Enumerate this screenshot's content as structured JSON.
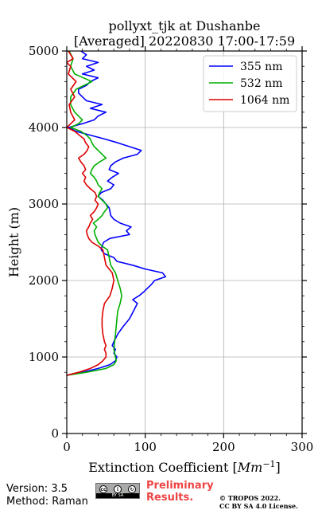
{
  "chart_data": {
    "type": "line",
    "title_line1": "pollyxt_tjk at Dushanbe",
    "title_line2": "[Averaged] 20220830 17:00-17:59",
    "xlabel": "Extinction Coefficient [",
    "xlabel_unit": "Mm",
    "xlabel_exp": "−1",
    "xlabel_end": "]",
    "ylabel": "Height (m)",
    "xlim": [
      0,
      300
    ],
    "ylim": [
      0,
      5000
    ],
    "xticks": [
      0,
      100,
      200,
      300
    ],
    "yticks": [
      0,
      1000,
      2000,
      3000,
      4000,
      5000
    ],
    "grid": true,
    "legend_position": "top-right",
    "series": [
      {
        "name": "355 nm",
        "color": "#0000ff",
        "y": [
          760,
          800,
          850,
          900,
          950,
          1000,
          1050,
          1100,
          1150,
          1200,
          1300,
          1400,
          1500,
          1600,
          1700,
          1750,
          1800,
          1850,
          1900,
          1950,
          2000,
          2050,
          2100,
          2150,
          2200,
          2250,
          2300,
          2350,
          2400,
          2450,
          2500,
          2550,
          2600,
          2650,
          2700,
          2750,
          2800,
          2850,
          2900,
          2950,
          3000,
          3050,
          3100,
          3150,
          3200,
          3250,
          3300,
          3350,
          3400,
          3450,
          3500,
          3550,
          3600,
          3650,
          3700,
          3750,
          3800,
          3850,
          3900,
          3950,
          4000,
          4050,
          4100,
          4150,
          4200,
          4250,
          4300,
          4350,
          4400,
          4450,
          4500,
          4550,
          4600,
          4650,
          4700,
          4750,
          4800,
          4850,
          4900,
          4950,
          5000
        ],
        "x": [
          0,
          20,
          40,
          55,
          62,
          64,
          60,
          62,
          58,
          60,
          65,
          72,
          80,
          85,
          90,
          84,
          92,
          98,
          103,
          108,
          112,
          126,
          122,
          100,
          84,
          64,
          60,
          48,
          44,
          45,
          47,
          55,
          80,
          76,
          82,
          68,
          60,
          56,
          55,
          54,
          50,
          46,
          40,
          44,
          56,
          60,
          52,
          58,
          66,
          54,
          56,
          62,
          72,
          90,
          95,
          80,
          65,
          48,
          30,
          12,
          2,
          20,
          35,
          40,
          50,
          30,
          45,
          25,
          20,
          15,
          15,
          25,
          30,
          40,
          20,
          35,
          25,
          40,
          20,
          25,
          18
        ]
      },
      {
        "name": "532 nm",
        "color": "#00b000",
        "y": [
          760,
          800,
          850,
          900,
          950,
          1000,
          1100,
          1200,
          1300,
          1400,
          1500,
          1600,
          1700,
          1800,
          1900,
          2000,
          2100,
          2200,
          2300,
          2400,
          2450,
          2500,
          2550,
          2600,
          2650,
          2700,
          2750,
          2800,
          2850,
          2900,
          2950,
          3000,
          3050,
          3100,
          3150,
          3200,
          3250,
          3300,
          3350,
          3400,
          3450,
          3500,
          3550,
          3600,
          3650,
          3700,
          3750,
          3800,
          3850,
          3900,
          3950,
          4000,
          4050,
          4100,
          4200,
          4300,
          4400,
          4500,
          4600,
          4700,
          4800,
          4900,
          5000
        ],
        "x": [
          0,
          25,
          50,
          60,
          63,
          62,
          60,
          61,
          62,
          63,
          64,
          65,
          68,
          70,
          68,
          65,
          62,
          56,
          54,
          52,
          45,
          40,
          38,
          36,
          35,
          38,
          34,
          40,
          45,
          48,
          52,
          50,
          45,
          40,
          42,
          45,
          40,
          38,
          35,
          30,
          32,
          35,
          42,
          50,
          45,
          40,
          35,
          32,
          30,
          25,
          18,
          5,
          15,
          20,
          10,
          5,
          5,
          12,
          32,
          10,
          5,
          8,
          3
        ]
      },
      {
        "name": "1064 nm",
        "color": "#dd0000",
        "y": [
          760,
          800,
          850,
          900,
          950,
          1000,
          1050,
          1100,
          1150,
          1200,
          1300,
          1400,
          1500,
          1600,
          1700,
          1800,
          1900,
          2000,
          2100,
          2200,
          2300,
          2400,
          2450,
          2500,
          2550,
          2600,
          2650,
          2700,
          2750,
          2800,
          2850,
          2900,
          2950,
          3000,
          3050,
          3100,
          3150,
          3200,
          3250,
          3300,
          3350,
          3400,
          3450,
          3500,
          3550,
          3600,
          3650,
          3700,
          3750,
          3800,
          3850,
          3900,
          3950,
          4000,
          4100,
          4200,
          4300,
          4400,
          4500,
          4600,
          4700,
          4800,
          4850,
          4900,
          5000
        ],
        "x": [
          0,
          15,
          30,
          40,
          46,
          50,
          50,
          48,
          50,
          48,
          46,
          45,
          45,
          46,
          48,
          55,
          58,
          60,
          58,
          50,
          48,
          46,
          40,
          32,
          28,
          26,
          25,
          28,
          30,
          33,
          30,
          35,
          38,
          40,
          36,
          38,
          36,
          30,
          25,
          22,
          24,
          20,
          24,
          22,
          18,
          15,
          22,
          26,
          28,
          24,
          22,
          16,
          10,
          0,
          10,
          5,
          3,
          10,
          5,
          12,
          2,
          5,
          0,
          8,
          2
        ]
      }
    ]
  },
  "footer": {
    "version": "Version: 3.5",
    "method": "Method: Raman",
    "preliminary_line1": "Preliminary",
    "preliminary_line2": "Results.",
    "copyright_line1": "© TROPOS 2022.",
    "copyright_line2": "CC BY SA 4.0 License.",
    "cc_badge_text": "BY SA"
  }
}
